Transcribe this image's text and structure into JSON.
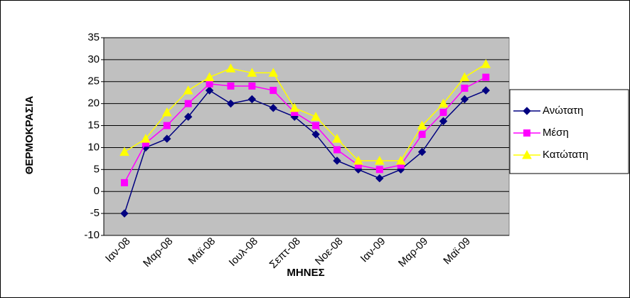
{
  "chart_data": {
    "type": "line",
    "y_label": "ΘΕΡΜΟΚΡΑΣΙΑ",
    "x_label": "ΜΗΝΕΣ",
    "categories": [
      "Ιαν-08",
      null,
      "Μαρ-08",
      null,
      "Μαϊ-08",
      null,
      "Ιουλ-08",
      null,
      "Σεπτ-08",
      null,
      "Νοε-08",
      null,
      "Ιαν-09",
      null,
      "Μαρ-09",
      null,
      "Μαϊ-09",
      null
    ],
    "series": [
      {
        "name": "Ανώτατη",
        "color": "#000080",
        "marker": "diamond",
        "values": [
          -5,
          10,
          12,
          17,
          23,
          20,
          21,
          19,
          17,
          13,
          7,
          5,
          3,
          5,
          9,
          16,
          21,
          23
        ]
      },
      {
        "name": "Μέση",
        "color": "#ff00ff",
        "marker": "square",
        "values": [
          2,
          11,
          15,
          20,
          24.5,
          24,
          24,
          23,
          18,
          15,
          9.5,
          6,
          5,
          6,
          13,
          18,
          23.5,
          26
        ]
      },
      {
        "name": "Κατώτατη",
        "color": "#ffff00",
        "marker": "triangle",
        "values": [
          9,
          12,
          18,
          23,
          26,
          28,
          27,
          27,
          19,
          17,
          12,
          7,
          7,
          7,
          15,
          20,
          26,
          29
        ]
      }
    ],
    "ylim": [
      -10,
      35
    ],
    "yticks": [
      -10,
      -5,
      0,
      5,
      10,
      15,
      20,
      25,
      30,
      35
    ],
    "grid": true,
    "plot_color": "#c0c0c0",
    "legend": "right"
  }
}
